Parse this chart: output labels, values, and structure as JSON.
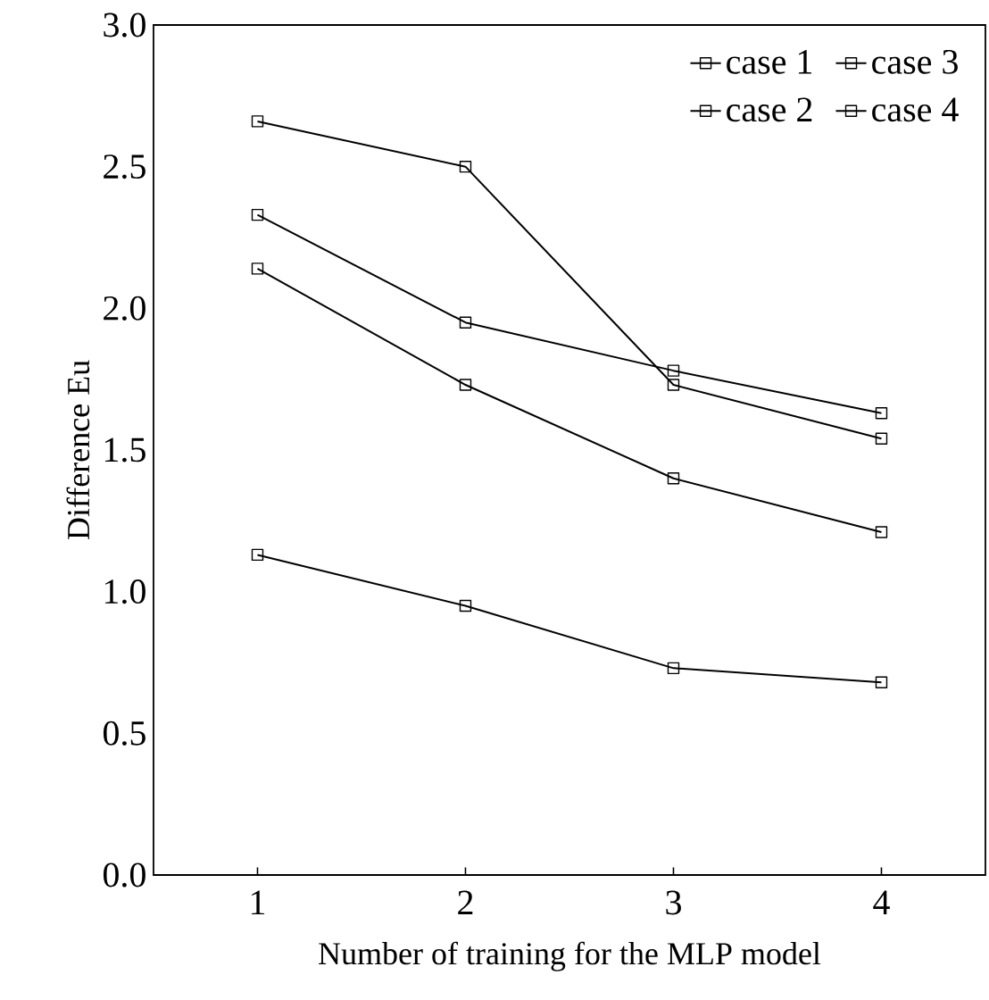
{
  "chart_data": {
    "type": "line",
    "xlabel": "Number of training for the MLP model",
    "ylabel": "Difference Eu",
    "x": [
      1,
      2,
      3,
      4
    ],
    "xlim": [
      0.5,
      4.5
    ],
    "xticks": [
      1,
      2,
      3,
      4
    ],
    "ylim": [
      0,
      3
    ],
    "yticks": [
      {
        "value": 0,
        "label": "0.0"
      },
      {
        "value": 0.5,
        "label": "0.5"
      },
      {
        "value": 1,
        "label": "1.0"
      },
      {
        "value": 1.5,
        "label": "1.5"
      },
      {
        "value": 2,
        "label": "2.0"
      },
      {
        "value": 2.5,
        "label": "2.5"
      },
      {
        "value": 3,
        "label": "3.0"
      }
    ],
    "grid": false,
    "legend": "top right",
    "marker": "square",
    "line_style": "solid",
    "series": [
      {
        "name": "case 1",
        "color": "#000000",
        "values": [
          2.33,
          1.95,
          1.78,
          1.63
        ]
      },
      {
        "name": "case 2",
        "color": "#000000",
        "values": [
          2.66,
          2.5,
          1.73,
          1.54
        ]
      },
      {
        "name": "case 3",
        "color": "#000000",
        "values": [
          2.14,
          1.73,
          1.4,
          1.21
        ]
      },
      {
        "name": "case 4",
        "color": "#000000",
        "values": [
          1.13,
          0.95,
          0.73,
          0.68
        ]
      }
    ]
  }
}
